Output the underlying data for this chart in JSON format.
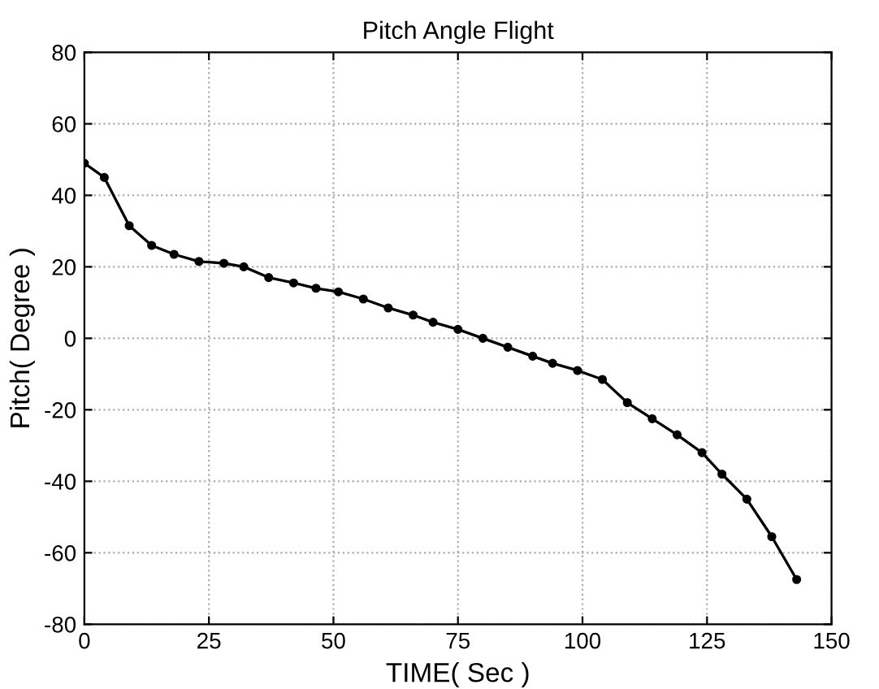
{
  "chart_data": {
    "type": "line",
    "title": "Pitch Angle Flight",
    "xlabel": "TIME( Sec )",
    "ylabel": "Pitch( Degree )",
    "x": [
      0,
      4,
      9,
      13.5,
      18,
      23,
      28,
      32,
      37,
      42,
      46.5,
      51,
      56,
      61,
      66,
      70,
      75,
      80,
      85,
      90,
      94,
      99,
      104,
      109,
      114,
      119,
      124,
      128,
      133,
      138,
      143
    ],
    "series": [
      {
        "color": "#000000",
        "values": [
          49,
          45,
          31.5,
          26,
          23.5,
          21.5,
          21,
          20,
          17,
          15.5,
          14,
          13,
          11,
          8.5,
          6.5,
          4.5,
          2.5,
          0,
          -2.5,
          -5,
          -7,
          -9,
          -11.5,
          -18,
          -22.5,
          -27,
          -32,
          -38,
          -45,
          -55.5,
          -67.5
        ]
      }
    ],
    "xlim": [
      0,
      150
    ],
    "xticks": [
      0,
      25,
      50,
      75,
      100,
      125,
      150
    ],
    "ylim": [
      -80,
      80
    ],
    "yticks": [
      -80,
      -60,
      -40,
      -20,
      0,
      20,
      40,
      60,
      80
    ],
    "grid": true,
    "marker": "circle",
    "line_style": "solid",
    "legend": false
  }
}
